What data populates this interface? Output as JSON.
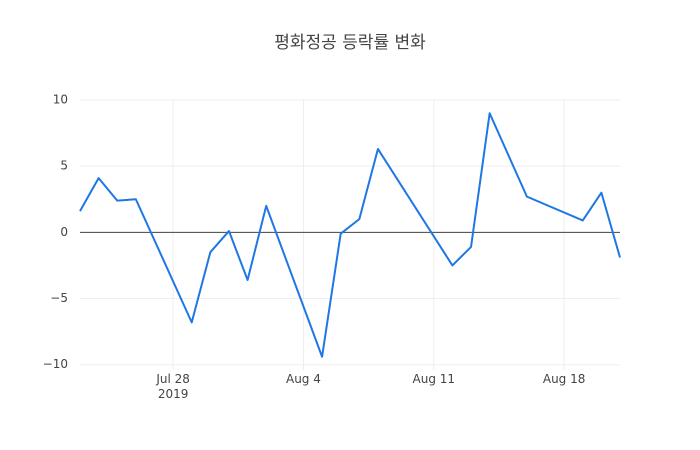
{
  "chart_data": {
    "type": "line",
    "title": "평화정공 등락률 변화",
    "x": [
      "2019-07-23",
      "2019-07-24",
      "2019-07-25",
      "2019-07-26",
      "2019-07-29",
      "2019-07-30",
      "2019-07-31",
      "2019-08-01",
      "2019-08-02",
      "2019-08-05",
      "2019-08-06",
      "2019-08-07",
      "2019-08-08",
      "2019-08-12",
      "2019-08-13",
      "2019-08-14",
      "2019-08-16",
      "2019-08-19",
      "2019-08-20",
      "2019-08-21"
    ],
    "series": [
      {
        "color": "#1f77e4",
        "values": [
          1.6,
          4.1,
          2.4,
          2.5,
          -6.8,
          -1.5,
          0.1,
          -3.6,
          2.0,
          -9.4,
          -0.1,
          1.0,
          6.3,
          -2.5,
          -1.1,
          9.0,
          2.7,
          0.9,
          3.0,
          -1.9
        ]
      }
    ],
    "xlim": [
      "2019-07-23",
      "2019-08-21"
    ],
    "xticks": [
      {
        "value": "2019-07-28",
        "label": "Jul 28\n2019"
      },
      {
        "value": "2019-08-04",
        "label": "Aug 4"
      },
      {
        "value": "2019-08-11",
        "label": "Aug 11"
      },
      {
        "value": "2019-08-18",
        "label": "Aug 18"
      }
    ],
    "ylim": [
      -10.4,
      10
    ],
    "yticks": [
      {
        "value": -10,
        "label": "−10"
      },
      {
        "value": -5,
        "label": "−5"
      },
      0,
      5,
      10
    ],
    "grid": true,
    "zeroline": true
  }
}
